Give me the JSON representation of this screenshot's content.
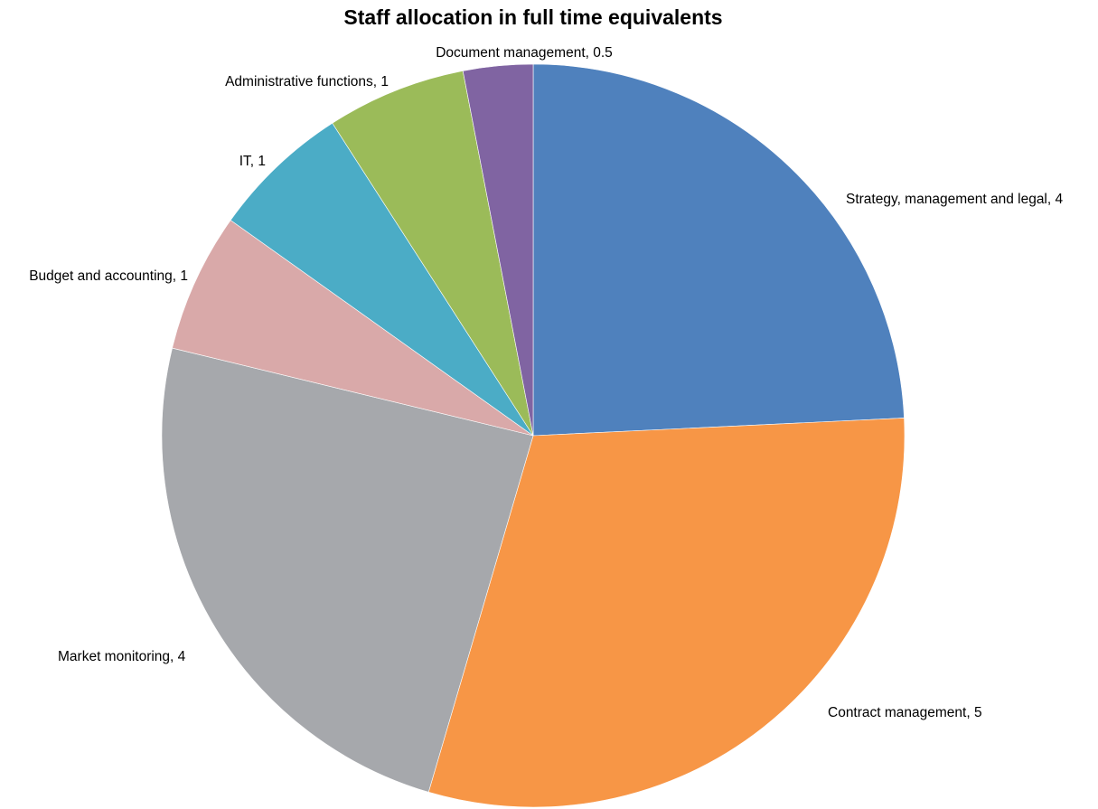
{
  "chart_data": {
    "type": "pie",
    "title": "Staff allocation in full time equivalents",
    "unit": "full time equivalents",
    "slices": [
      {
        "name": "Strategy, management and legal",
        "value": 4,
        "label": "Strategy, management and legal, 4",
        "color": "#4F81BD"
      },
      {
        "name": "Contract management",
        "value": 5,
        "label": "Contract management, 5",
        "color": "#F79646"
      },
      {
        "name": "Market monitoring",
        "value": 4,
        "label": "Market monitoring, 4",
        "color": "#A6A8AC"
      },
      {
        "name": "Budget and accounting",
        "value": 1,
        "label": "Budget and accounting, 1",
        "color": "#D9A9A9"
      },
      {
        "name": "IT",
        "value": 1,
        "label": "IT, 1",
        "color": "#4BACC6"
      },
      {
        "name": "Administrative functions",
        "value": 1,
        "label": "Administrative functions, 1",
        "color": "#9BBB59"
      },
      {
        "name": "Document management",
        "value": 0.5,
        "label": "Document management, 0.5",
        "color": "#8064A2"
      }
    ],
    "start_angle": "12 o'clock",
    "direction": "clockwise",
    "legend": "none",
    "data_labels": "outside slices"
  }
}
